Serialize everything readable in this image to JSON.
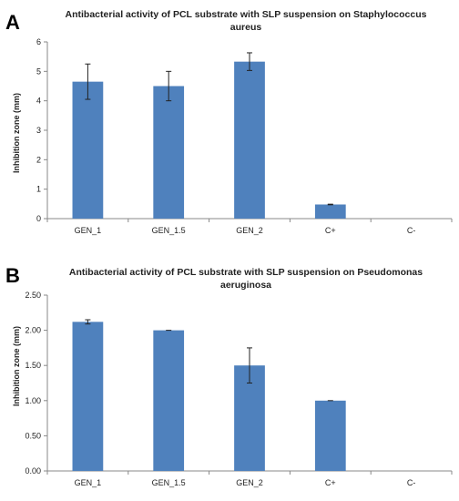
{
  "panels": [
    {
      "letter": "A",
      "title": "Antibacterial activity of PCL substrate with SLP suspension on Staphylococcus aureus",
      "ylabel": "Inhibition zone (mm)"
    },
    {
      "letter": "B",
      "title": "Antibacterial activity of PCL substrate with SLP suspension on Pseudomonas aeruginosa",
      "ylabel": "Inhibition zone (mm)"
    }
  ],
  "chart_data": [
    {
      "type": "bar",
      "title": "Antibacterial activity of PCL substrate with SLP suspension on Staphylococcus aureus",
      "xlabel": "",
      "ylabel": "Inhibition zone (mm)",
      "categories": [
        "GEN_1",
        "GEN_1.5",
        "GEN_2",
        "C+",
        "C-"
      ],
      "values": [
        4.65,
        4.5,
        5.33,
        0.48,
        0
      ],
      "errors": [
        0.6,
        0.5,
        0.3,
        0.01,
        0
      ],
      "ylim": [
        0,
        6
      ],
      "yticks": [
        "0",
        "1",
        "2",
        "3",
        "4",
        "5",
        "6"
      ],
      "grid": false,
      "legend": "none",
      "bar_color": "#4f81bd"
    },
    {
      "type": "bar",
      "title": "Antibacterial activity of PCL substrate with SLP suspension on Pseudomonas aeruginosa",
      "xlabel": "",
      "ylabel": "Inhibition zone (mm)",
      "categories": [
        "GEN_1",
        "GEN_1.5",
        "GEN_2",
        "C+",
        "C-"
      ],
      "values": [
        2.12,
        2.0,
        1.5,
        1.0,
        0
      ],
      "errors": [
        0.03,
        0.0,
        0.25,
        0.0,
        0
      ],
      "ylim": [
        0,
        2.5
      ],
      "yticks": [
        "0.00",
        "0.50",
        "1.00",
        "1.50",
        "2.00",
        "2.50"
      ],
      "grid": false,
      "legend": "none",
      "bar_color": "#4f81bd"
    }
  ]
}
